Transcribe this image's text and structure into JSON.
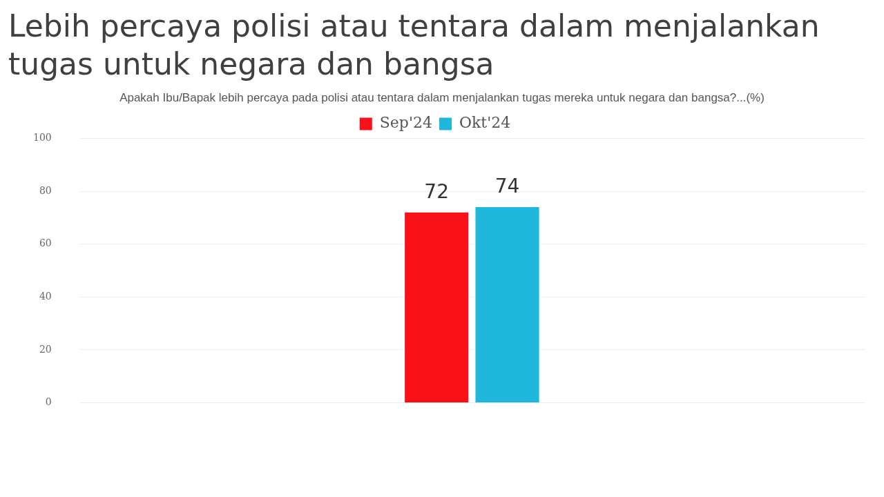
{
  "chart_data": {
    "type": "bar",
    "title": "Lebih percaya polisi atau tentara dalam menjalankan tugas untuk negara dan bangsa",
    "subtitle": "Apakah Ibu/Bapak lebih percaya pada polisi atau tentara dalam menjalankan tugas mereka untuk negara dan bangsa?...(%)",
    "categories": [
      null
    ],
    "series": [
      {
        "name": "Sep'24",
        "color": "#fa1018",
        "values": [
          72
        ]
      },
      {
        "name": "Okt'24",
        "color": "#1fb8dc",
        "values": [
          74
        ]
      }
    ],
    "ylim": [
      0,
      100
    ],
    "yticks": [
      0,
      20,
      40,
      60,
      80,
      100
    ],
    "grid": "y",
    "legend": "top",
    "data_labels": true
  }
}
